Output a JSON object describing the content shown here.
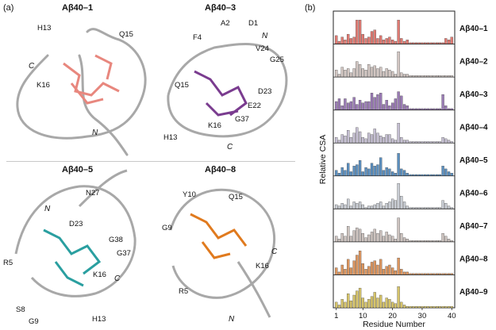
{
  "panel_a_label": "(a)",
  "panel_b_label": "(b)",
  "structures": [
    {
      "name": "Aβ40–1",
      "residues": [
        "H13",
        "Q15",
        "K16"
      ],
      "termini": [
        "C",
        "N"
      ]
    },
    {
      "name": "Aβ40–3",
      "residues": [
        "A2",
        "D1",
        "F4",
        "V24",
        "G25",
        "Q15",
        "D23",
        "E22",
        "G37",
        "K16",
        "H13"
      ],
      "termini": [
        "N",
        "C"
      ]
    },
    {
      "name": "Aβ40–5",
      "residues": [
        "N27",
        "D23",
        "G38",
        "G37",
        "R5",
        "K16",
        "S8",
        "G9",
        "H13"
      ],
      "termini": [
        "N",
        "C"
      ]
    },
    {
      "name": "Aβ40–8",
      "residues": [
        "Y10",
        "Q15",
        "G9",
        "K16",
        "R5"
      ],
      "termini": [
        "C",
        "N"
      ]
    }
  ],
  "colors": {
    "s1": "#e07a72",
    "s2": "#d2c6c2",
    "s3": "#9a7bb5",
    "s4": "#c5bfd2",
    "s5": "#5b8fbf",
    "s6": "#c9cdd4",
    "s7": "#cdc3bf",
    "s8": "#dd965f",
    "s9": "#d6c46a",
    "ribbon": "#a8a8a8",
    "teal": "#2a9fa0",
    "purple": "#7a3c8f",
    "orange": "#e07a1e",
    "salmon": "#e8877e"
  },
  "chart_data": {
    "type": "bar",
    "ylabel": "Relative CSA",
    "xlabel": "Residue Number",
    "xticks": [
      1,
      10,
      20,
      30,
      40
    ],
    "xlim": [
      0,
      41
    ],
    "ylim": [
      0,
      1
    ],
    "series": [
      {
        "name": "Aβ40–1",
        "color": "#e07a72",
        "x": [
          1,
          2,
          3,
          4,
          5,
          6,
          7,
          8,
          9,
          10,
          11,
          12,
          13,
          14,
          15,
          16,
          17,
          18,
          19,
          20,
          21,
          22,
          23,
          24,
          25,
          26,
          27,
          28,
          29,
          30,
          31,
          32,
          33,
          34,
          35,
          36,
          37,
          38,
          39,
          40
        ],
        "values": [
          0.3,
          0.1,
          0.25,
          0.15,
          0.35,
          0.2,
          0.25,
          0.85,
          0.85,
          0.35,
          0.2,
          0.25,
          0.45,
          0.5,
          0.2,
          0.3,
          0.15,
          0.2,
          0.25,
          0.15,
          0.1,
          0.85,
          0.2,
          0.1,
          0.15,
          0.05,
          0.05,
          0.05,
          0.05,
          0.05,
          0.05,
          0.05,
          0.05,
          0.05,
          0.05,
          0.05,
          0.05,
          0.2,
          0.15,
          0.25
        ]
      },
      {
        "name": "Aβ40–2",
        "color": "#d2c6c2",
        "x": [
          1,
          2,
          3,
          4,
          5,
          6,
          7,
          8,
          9,
          10,
          11,
          12,
          13,
          14,
          15,
          16,
          17,
          18,
          19,
          20,
          21,
          22,
          23,
          24,
          25,
          26,
          27,
          28,
          29,
          30,
          31,
          32,
          33,
          34,
          35,
          36,
          37,
          38,
          39,
          40
        ],
        "values": [
          0.25,
          0.1,
          0.35,
          0.25,
          0.3,
          0.15,
          0.3,
          0.55,
          0.45,
          0.3,
          0.25,
          0.45,
          0.35,
          0.4,
          0.3,
          0.35,
          0.2,
          0.3,
          0.25,
          0.2,
          0.1,
          0.9,
          0.15,
          0.1,
          0.1,
          0.05,
          0.05,
          0.05,
          0.05,
          0.05,
          0.05,
          0.05,
          0.05,
          0.05,
          0.05,
          0.05,
          0.05,
          0.05,
          0.05,
          0.05
        ]
      },
      {
        "name": "Aβ40–3",
        "color": "#9a7bb5",
        "x": [
          1,
          2,
          3,
          4,
          5,
          6,
          7,
          8,
          9,
          10,
          11,
          12,
          13,
          14,
          15,
          16,
          17,
          18,
          19,
          20,
          21,
          22,
          23,
          24,
          25,
          26,
          27,
          28,
          29,
          30,
          31,
          32,
          33,
          34,
          35,
          36,
          37,
          38,
          39,
          40
        ],
        "values": [
          0.3,
          0.4,
          0.15,
          0.4,
          0.25,
          0.3,
          0.45,
          0.2,
          0.35,
          0.25,
          0.3,
          0.3,
          0.6,
          0.45,
          0.55,
          0.6,
          0.2,
          0.35,
          0.15,
          0.25,
          0.4,
          0.65,
          0.5,
          0.2,
          0.15,
          0.05,
          0.05,
          0.05,
          0.05,
          0.05,
          0.05,
          0.05,
          0.05,
          0.05,
          0.05,
          0.05,
          0.55,
          0.15,
          0.05,
          0.05
        ]
      },
      {
        "name": "Aβ40–4",
        "color": "#c5bfd2",
        "x": [
          1,
          2,
          3,
          4,
          5,
          6,
          7,
          8,
          9,
          10,
          11,
          12,
          13,
          14,
          15,
          16,
          17,
          18,
          19,
          20,
          21,
          22,
          23,
          24,
          25,
          26,
          27,
          28,
          29,
          30,
          31,
          32,
          33,
          34,
          35,
          36,
          37,
          38,
          39,
          40
        ],
        "values": [
          0.2,
          0.1,
          0.3,
          0.25,
          0.45,
          0.2,
          0.35,
          0.55,
          0.4,
          0.2,
          0.15,
          0.35,
          0.3,
          0.5,
          0.35,
          0.25,
          0.2,
          0.3,
          0.3,
          0.15,
          0.1,
          0.7,
          0.2,
          0.1,
          0.1,
          0.05,
          0.05,
          0.05,
          0.05,
          0.05,
          0.05,
          0.05,
          0.05,
          0.05,
          0.05,
          0.05,
          0.2,
          0.15,
          0.1,
          0.05
        ]
      },
      {
        "name": "Aβ40–5",
        "color": "#5b8fbf",
        "x": [
          1,
          2,
          3,
          4,
          5,
          6,
          7,
          8,
          9,
          10,
          11,
          12,
          13,
          14,
          15,
          16,
          17,
          18,
          19,
          20,
          21,
          22,
          23,
          24,
          25,
          26,
          27,
          28,
          29,
          30,
          31,
          32,
          33,
          34,
          35,
          36,
          37,
          38,
          39,
          40
        ],
        "values": [
          0.2,
          0.1,
          0.3,
          0.2,
          0.45,
          0.15,
          0.35,
          0.4,
          0.55,
          0.15,
          0.3,
          0.25,
          0.45,
          0.35,
          0.4,
          0.65,
          0.2,
          0.3,
          0.25,
          0.15,
          0.1,
          0.8,
          0.25,
          0.2,
          0.1,
          0.05,
          0.05,
          0.05,
          0.05,
          0.05,
          0.05,
          0.05,
          0.05,
          0.05,
          0.05,
          0.05,
          0.35,
          0.25,
          0.15,
          0.1
        ]
      },
      {
        "name": "Aβ40–6",
        "color": "#c9cdd4",
        "x": [
          1,
          2,
          3,
          4,
          5,
          6,
          7,
          8,
          9,
          10,
          11,
          12,
          13,
          14,
          15,
          16,
          17,
          18,
          19,
          20,
          21,
          22,
          23,
          24,
          25,
          26,
          27,
          28,
          29,
          30,
          31,
          32,
          33,
          34,
          35,
          36,
          37,
          38,
          39,
          40
        ],
        "values": [
          0.15,
          0.1,
          0.2,
          0.15,
          0.35,
          0.1,
          0.25,
          0.2,
          0.25,
          0.15,
          0.05,
          0.1,
          0.1,
          0.15,
          0.2,
          0.25,
          0.1,
          0.2,
          0.25,
          0.35,
          0.3,
          0.9,
          0.45,
          0.25,
          0.1,
          0.05,
          0.05,
          0.05,
          0.05,
          0.05,
          0.05,
          0.05,
          0.05,
          0.05,
          0.05,
          0.05,
          0.3,
          0.2,
          0.1,
          0.05
        ]
      },
      {
        "name": "Aβ40–7",
        "color": "#cdc3bf",
        "x": [
          1,
          2,
          3,
          4,
          5,
          6,
          7,
          8,
          9,
          10,
          11,
          12,
          13,
          14,
          15,
          16,
          17,
          18,
          19,
          20,
          21,
          22,
          23,
          24,
          25,
          26,
          27,
          28,
          29,
          30,
          31,
          32,
          33,
          34,
          35,
          36,
          37,
          38,
          39,
          40
        ],
        "values": [
          0.2,
          0.1,
          0.3,
          0.2,
          0.55,
          0.2,
          0.4,
          0.5,
          0.45,
          0.3,
          0.15,
          0.25,
          0.35,
          0.45,
          0.3,
          0.4,
          0.2,
          0.35,
          0.25,
          0.2,
          0.1,
          0.85,
          0.3,
          0.15,
          0.1,
          0.05,
          0.05,
          0.05,
          0.05,
          0.05,
          0.05,
          0.05,
          0.05,
          0.05,
          0.05,
          0.05,
          0.3,
          0.2,
          0.1,
          0.05
        ]
      },
      {
        "name": "Aβ40–8",
        "color": "#dd965f",
        "x": [
          1,
          2,
          3,
          4,
          5,
          6,
          7,
          8,
          9,
          10,
          11,
          12,
          13,
          14,
          15,
          16,
          17,
          18,
          19,
          20,
          21,
          22,
          23,
          24,
          25,
          26,
          27,
          28,
          29,
          30,
          31,
          32,
          33,
          34,
          35,
          36,
          37,
          38,
          39,
          40
        ],
        "values": [
          0.25,
          0.1,
          0.35,
          0.2,
          0.55,
          0.25,
          0.5,
          0.7,
          0.85,
          0.4,
          0.2,
          0.3,
          0.45,
          0.5,
          0.35,
          0.55,
          0.2,
          0.3,
          0.35,
          0.25,
          0.15,
          0.6,
          0.2,
          0.1,
          0.1,
          0.05,
          0.05,
          0.05,
          0.05,
          0.05,
          0.05,
          0.05,
          0.05,
          0.05,
          0.05,
          0.05,
          0.05,
          0.05,
          0.05,
          0.05
        ]
      },
      {
        "name": "Aβ40–9",
        "color": "#d6c46a",
        "x": [
          1,
          2,
          3,
          4,
          5,
          6,
          7,
          8,
          9,
          10,
          11,
          12,
          13,
          14,
          15,
          16,
          17,
          18,
          19,
          20,
          21,
          22,
          23,
          24,
          25,
          26,
          27,
          28,
          29,
          30,
          31,
          32,
          33,
          34,
          35,
          36,
          37,
          38,
          39,
          40
        ],
        "values": [
          0.2,
          0.1,
          0.3,
          0.2,
          0.5,
          0.25,
          0.45,
          0.6,
          0.7,
          0.35,
          0.2,
          0.3,
          0.4,
          0.55,
          0.35,
          0.45,
          0.2,
          0.35,
          0.3,
          0.2,
          0.15,
          0.75,
          0.2,
          0.1,
          0.05,
          0.05,
          0.05,
          0.05,
          0.05,
          0.05,
          0.05,
          0.05,
          0.05,
          0.05,
          0.05,
          0.05,
          0.05,
          0.05,
          0.05,
          0.05
        ]
      }
    ]
  }
}
